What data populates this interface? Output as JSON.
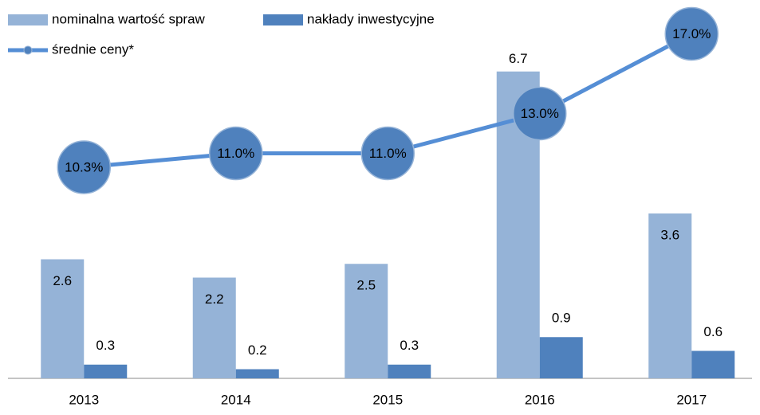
{
  "chart_data": {
    "type": "bar",
    "categories": [
      "2013",
      "2014",
      "2015",
      "2016",
      "2017"
    ],
    "series": [
      {
        "name": "nominalna wartość spraw",
        "color": "#95b3d7",
        "values": [
          2.6,
          2.2,
          2.5,
          6.7,
          3.6
        ]
      },
      {
        "name": "nakłady inwestycyjne",
        "color": "#4f81bd",
        "values": [
          0.3,
          0.2,
          0.3,
          0.9,
          0.6
        ]
      },
      {
        "name": "średnie ceny*",
        "type": "line",
        "axis": "y2",
        "color": "#558ed5",
        "marker_color": "#4f81bd",
        "values": [
          10.3,
          11.0,
          11.0,
          13.0,
          17.0
        ],
        "value_labels": [
          "10.3%",
          "11.0%",
          "11.0%",
          "13.0%",
          "17.0%"
        ]
      }
    ],
    "ylim": [
      0,
      8
    ],
    "y2lim": [
      -0.3,
      18.1
    ],
    "legend": "top-left"
  }
}
